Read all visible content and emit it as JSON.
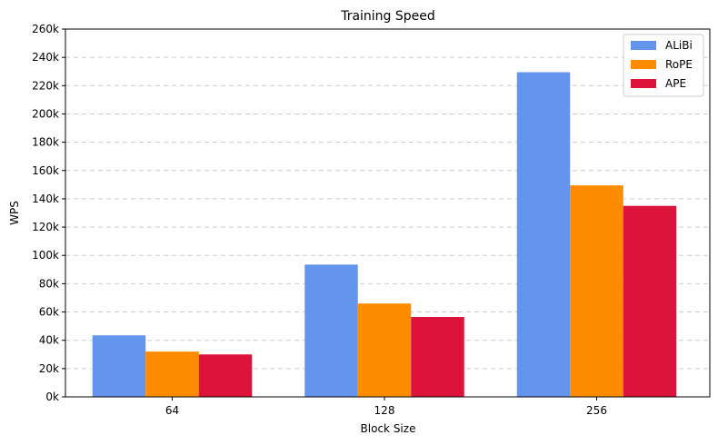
{
  "chart_data": {
    "type": "bar",
    "title": "Training Speed",
    "xlabel": "Block Size",
    "ylabel": "WPS",
    "categories": [
      "64",
      "128",
      "256"
    ],
    "series": [
      {
        "name": "ALiBi",
        "color": "#6495ED",
        "values": [
          43500,
          93500,
          229500
        ]
      },
      {
        "name": "RoPE",
        "color": "#FF8C00",
        "values": [
          32000,
          66000,
          149500
        ]
      },
      {
        "name": "APE",
        "color": "#DC143C",
        "values": [
          30000,
          56500,
          135000
        ]
      }
    ],
    "ylim": [
      0,
      260000
    ],
    "yticks": [
      0,
      20000,
      40000,
      60000,
      80000,
      100000,
      120000,
      140000,
      160000,
      180000,
      200000,
      220000,
      240000,
      260000
    ],
    "ytick_labels": [
      "0k",
      "20k",
      "40k",
      "60k",
      "80k",
      "100k",
      "120k",
      "140k",
      "160k",
      "180k",
      "200k",
      "220k",
      "240k",
      "260k"
    ],
    "grid": "y-dashed",
    "legend_position": "top-right"
  }
}
